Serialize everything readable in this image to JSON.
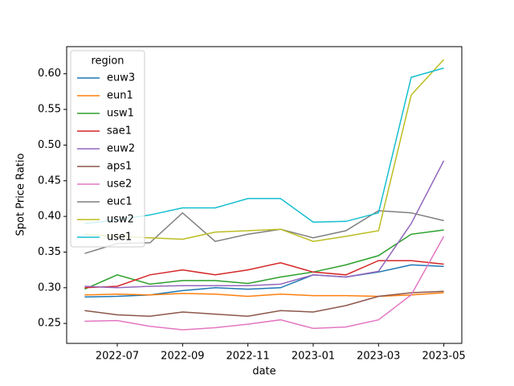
{
  "chart_data": {
    "type": "line",
    "x_label": "date",
    "y_label": "Spot Price Ratio",
    "x": [
      "2022-06",
      "2022-07",
      "2022-08",
      "2022-09",
      "2022-10",
      "2022-11",
      "2022-12",
      "2023-01",
      "2023-02",
      "2023-03",
      "2023-04",
      "2023-05"
    ],
    "xticks": [
      "2022-07",
      "2022-09",
      "2022-11",
      "2023-01",
      "2023-03",
      "2023-05"
    ],
    "ylim": [
      0.222,
      0.638
    ],
    "yticks": [
      0.25,
      {
        "value": 0.3,
        "label": "0.30"
      },
      0.35,
      {
        "value": 0.4,
        "label": "0.40"
      },
      0.45,
      {
        "value": 0.5,
        "label": "0.50"
      },
      0.55,
      {
        "value": 0.6,
        "label": "0.60"
      }
    ],
    "grid": false,
    "legend_title": "region",
    "legend_position": "upper-left",
    "series": [
      {
        "name": "euw3",
        "color": "#1f77b4",
        "values": [
          0.287,
          0.288,
          0.29,
          0.296,
          0.3,
          0.298,
          0.3,
          0.318,
          0.315,
          0.322,
          0.332,
          0.33
        ]
      },
      {
        "name": "eun1",
        "color": "#ff7f0e",
        "values": [
          0.29,
          0.291,
          0.29,
          0.292,
          0.291,
          0.288,
          0.291,
          0.289,
          0.289,
          0.288,
          0.29,
          0.293
        ]
      },
      {
        "name": "usw1",
        "color": "#2ca02c",
        "values": [
          0.298,
          0.318,
          0.305,
          0.31,
          0.31,
          0.306,
          0.315,
          0.322,
          0.332,
          0.345,
          0.375,
          0.381
        ]
      },
      {
        "name": "sae1",
        "color": "#d62728",
        "values": [
          0.3,
          0.302,
          0.318,
          0.325,
          0.318,
          0.325,
          0.335,
          0.322,
          0.318,
          0.338,
          0.338,
          0.333
        ]
      },
      {
        "name": "euw2",
        "color": "#9467bd",
        "values": [
          0.302,
          0.3,
          0.302,
          0.303,
          0.303,
          0.303,
          0.305,
          0.318,
          0.315,
          0.323,
          0.39,
          0.478
        ]
      },
      {
        "name": "aps1",
        "color": "#8c564b",
        "values": [
          0.268,
          0.262,
          0.26,
          0.266,
          0.263,
          0.26,
          0.268,
          0.266,
          0.275,
          0.288,
          0.293,
          0.295
        ]
      },
      {
        "name": "use2",
        "color": "#e377c2",
        "values": [
          0.253,
          0.254,
          0.246,
          0.241,
          0.244,
          0.249,
          0.255,
          0.243,
          0.245,
          0.255,
          0.29,
          0.372
        ]
      },
      {
        "name": "euc1",
        "color": "#7f7f7f",
        "values": [
          0.348,
          0.362,
          0.363,
          0.405,
          0.365,
          0.375,
          0.382,
          0.37,
          0.38,
          0.408,
          0.405,
          0.394
        ]
      },
      {
        "name": "usw2",
        "color": "#bcbd22",
        "values": [
          0.375,
          0.372,
          0.37,
          0.368,
          0.378,
          0.38,
          0.382,
          0.365,
          0.372,
          0.38,
          0.57,
          0.62
        ]
      },
      {
        "name": "use1",
        "color": "#17becf",
        "values": [
          0.39,
          0.395,
          0.402,
          0.412,
          0.412,
          0.425,
          0.425,
          0.392,
          0.393,
          0.405,
          0.595,
          0.608
        ]
      }
    ]
  }
}
